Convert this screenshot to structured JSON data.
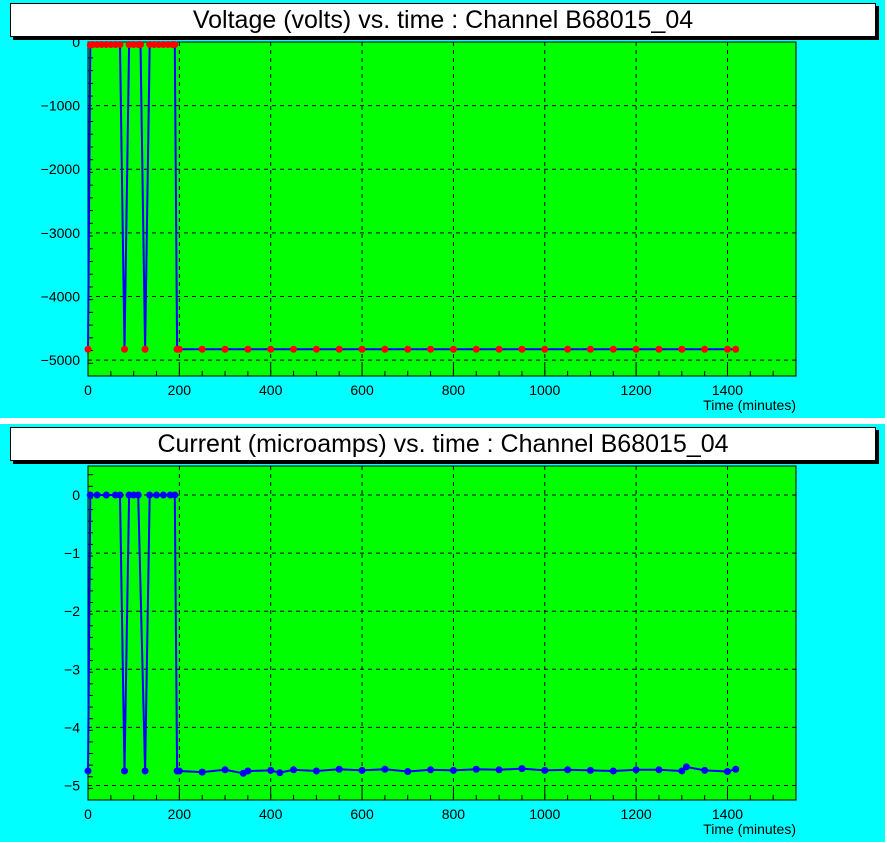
{
  "chart_data": [
    {
      "type": "line",
      "title": "Voltage (volts) vs. time  : Channel B68015_04",
      "xlabel": "Time (minutes)",
      "ylabel": "",
      "xlim": [
        0,
        1550
      ],
      "ylim": [
        -5250,
        0
      ],
      "xticks": [
        0,
        200,
        400,
        600,
        800,
        1000,
        1200,
        1400
      ],
      "yticks": [
        0,
        -1000,
        -2000,
        -3000,
        -4000,
        -5000
      ],
      "grid": true,
      "background": "#00ff00",
      "line_color": "#0000ff",
      "marker_color": "#ff0000",
      "series": [
        {
          "x": [
            0,
            5,
            10,
            20,
            30,
            40,
            50,
            60,
            70,
            80,
            90,
            100,
            110,
            115,
            125,
            135,
            145,
            155,
            165,
            175,
            185,
            190,
            195,
            200,
            250,
            300,
            350,
            400,
            450,
            500,
            550,
            600,
            650,
            700,
            750,
            800,
            850,
            900,
            950,
            1000,
            1050,
            1100,
            1150,
            1200,
            1250,
            1300,
            1350,
            1400,
            1418
          ],
          "y": [
            -4830,
            -50,
            -40,
            -40,
            -40,
            -40,
            -40,
            -40,
            -40,
            -4830,
            -40,
            -40,
            -40,
            -40,
            -4830,
            -40,
            -40,
            -40,
            -40,
            -40,
            -40,
            -40,
            -4830,
            -4830,
            -4830,
            -4830,
            -4830,
            -4830,
            -4830,
            -4830,
            -4830,
            -4830,
            -4830,
            -4830,
            -4830,
            -4830,
            -4830,
            -4830,
            -4830,
            -4830,
            -4830,
            -4830,
            -4830,
            -4830,
            -4830,
            -4830,
            -4830,
            -4830,
            -4830
          ]
        }
      ]
    },
    {
      "type": "line",
      "title": "Current (microamps) vs. time : Channel B68015_04",
      "xlabel": "Time (minutes)",
      "ylabel": "",
      "xlim": [
        0,
        1550
      ],
      "ylim": [
        -5.25,
        0.5
      ],
      "xticks": [
        0,
        200,
        400,
        600,
        800,
        1000,
        1200,
        1400
      ],
      "yticks": [
        0,
        -1,
        -2,
        -3,
        -4,
        -5
      ],
      "grid": true,
      "background": "#00ff00",
      "line_color": "#0000ff",
      "marker_color": "#0000ff",
      "series": [
        {
          "x": [
            0,
            5,
            20,
            40,
            60,
            70,
            80,
            90,
            100,
            110,
            125,
            135,
            150,
            165,
            180,
            190,
            195,
            200,
            250,
            300,
            340,
            350,
            400,
            420,
            450,
            500,
            550,
            600,
            650,
            700,
            750,
            800,
            850,
            900,
            950,
            1000,
            1050,
            1100,
            1150,
            1200,
            1250,
            1300,
            1310,
            1350,
            1400,
            1418
          ],
          "y": [
            -4.75,
            0.0,
            0.0,
            0.0,
            0.0,
            0.0,
            -4.75,
            0.0,
            0.0,
            0.0,
            -4.75,
            0.0,
            0.0,
            0.0,
            0.0,
            0.0,
            -4.75,
            -4.75,
            -4.77,
            -4.73,
            -4.79,
            -4.75,
            -4.74,
            -4.78,
            -4.73,
            -4.75,
            -4.72,
            -4.74,
            -4.72,
            -4.76,
            -4.73,
            -4.74,
            -4.72,
            -4.73,
            -4.71,
            -4.74,
            -4.73,
            -4.74,
            -4.75,
            -4.73,
            -4.73,
            -4.75,
            -4.68,
            -4.74,
            -4.76,
            -4.72
          ]
        }
      ]
    }
  ]
}
